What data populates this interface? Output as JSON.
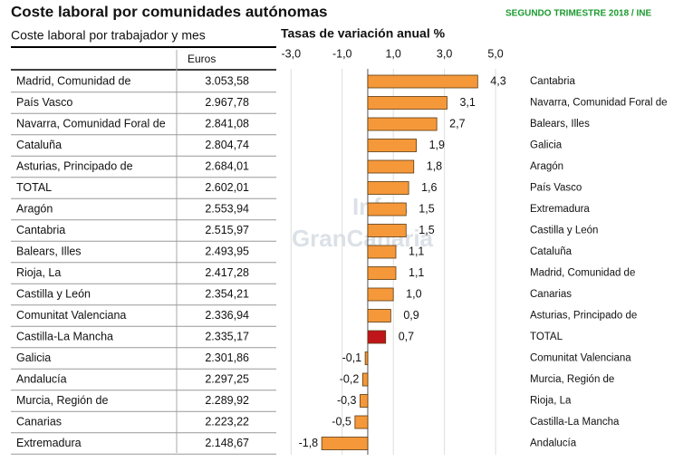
{
  "title": "Coste laboral por comunidades autónomas",
  "source": "SEGUNDO TRIMESTRE 2018 / INE",
  "watermark": [
    "Infos",
    "GranCanaria"
  ],
  "table": {
    "title": "Coste laboral por trabajador y mes",
    "header": "Euros",
    "rows": [
      [
        "Madrid, Comunidad de",
        "3.053,58"
      ],
      [
        "País Vasco",
        "2.967,78"
      ],
      [
        "Navarra, Comunidad Foral de",
        "2.841,08"
      ],
      [
        "Cataluña",
        "2.804,74"
      ],
      [
        "Asturias, Principado de",
        "2.684,01"
      ],
      [
        "TOTAL",
        "2.602,01"
      ],
      [
        "Aragón",
        "2.553,94"
      ],
      [
        "Cantabria",
        "2.515,97"
      ],
      [
        "Balears, Illes",
        "2.493,95"
      ],
      [
        "Rioja, La",
        "2.417,28"
      ],
      [
        "Castilla y León",
        "2.354,21"
      ],
      [
        "Comunitat Valenciana",
        "2.336,94"
      ],
      [
        "Castilla-La Mancha",
        "2.335,17"
      ],
      [
        "Galicia",
        "2.301,86"
      ],
      [
        "Andalucía",
        "2.297,25"
      ],
      [
        "Murcia, Región de",
        "2.289,92"
      ],
      [
        "Canarias",
        "2.223,22"
      ],
      [
        "Extremadura",
        "2.148,67"
      ]
    ]
  },
  "chart_data": {
    "type": "bar",
    "orientation": "horizontal",
    "title": "Tasas de variación anual %",
    "categories": [
      "Cantabria",
      "Navarra, Comunidad Foral de",
      "Balears, Illes",
      "Galicia",
      "Aragón",
      "País Vasco",
      "Extremadura",
      "Castilla y León",
      "Cataluña",
      "Madrid, Comunidad de",
      "Canarias",
      "Asturias, Principado de",
      "TOTAL",
      "Comunitat Valenciana",
      "Murcia, Región de",
      "Rioja, La",
      "Castilla-La Mancha",
      "Andalucía"
    ],
    "values": [
      4.3,
      3.1,
      2.7,
      1.9,
      1.8,
      1.6,
      1.5,
      1.5,
      1.1,
      1.1,
      1.0,
      0.9,
      0.7,
      -0.1,
      -0.2,
      -0.3,
      -0.5,
      -1.8
    ],
    "value_labels": [
      "4,3",
      "3,1",
      "2,7",
      "1,9",
      "1,8",
      "1,6",
      "1,5",
      "1,5",
      "1,1",
      "1,1",
      "1,0",
      "0,9",
      "0,7",
      "-0,1",
      "-0,2",
      "-0,3",
      "-0,5",
      "-1,8"
    ],
    "colors": [
      "#f5983a",
      "#f5983a",
      "#f5983a",
      "#f5983a",
      "#f5983a",
      "#f5983a",
      "#f5983a",
      "#f5983a",
      "#f5983a",
      "#f5983a",
      "#f5983a",
      "#f5983a",
      "#c0151b",
      "#f5983a",
      "#f5983a",
      "#f5983a",
      "#f5983a",
      "#f5983a"
    ],
    "xlim": [
      -3.4,
      5.6
    ],
    "xticks": [
      {
        "value": -3,
        "label": "-3,0"
      },
      {
        "value": -1,
        "label": "-1,0"
      },
      {
        "value": 1,
        "label": "1,0"
      },
      {
        "value": 3,
        "label": "3,0"
      },
      {
        "value": 5,
        "label": "5,0"
      }
    ],
    "grid": true
  }
}
